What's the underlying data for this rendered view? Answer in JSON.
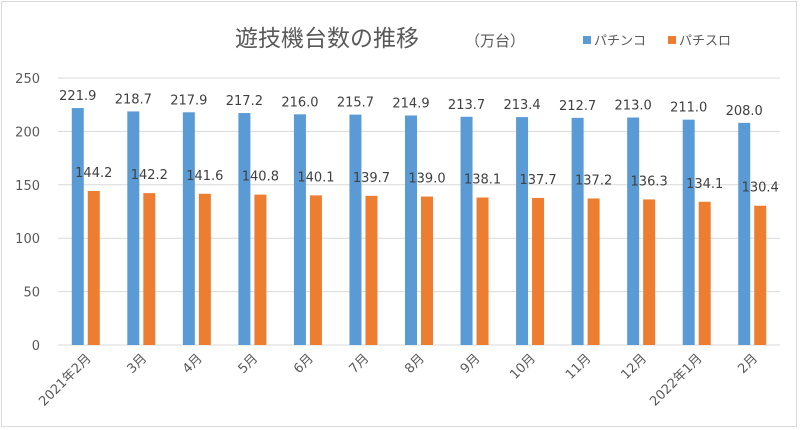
{
  "chart_data": {
    "type": "bar",
    "title": "遊技機台数の推移",
    "subtitle": "（万台）",
    "xlabel": "",
    "ylabel": "",
    "ylim": [
      0,
      250
    ],
    "yticks": [
      "0",
      "50",
      "100",
      "150",
      "200",
      "250"
    ],
    "grid": true,
    "legend_position": "top-right",
    "categories": [
      "2021年2月",
      "3月",
      "4月",
      "5月",
      "6月",
      "7月",
      "8月",
      "9月",
      "10月",
      "11月",
      "12月",
      "2022年1月",
      "2月"
    ],
    "series": [
      {
        "name": "パチンコ",
        "color": "#5b9bd5",
        "values": [
          221.9,
          218.7,
          217.9,
          217.2,
          216.0,
          215.7,
          214.9,
          213.7,
          213.4,
          212.7,
          213.0,
          211.0,
          208.0
        ]
      },
      {
        "name": "パチスロ",
        "color": "#ed7d31",
        "values": [
          144.2,
          142.2,
          141.6,
          140.8,
          140.1,
          139.7,
          139.0,
          138.1,
          137.7,
          137.2,
          136.3,
          134.1,
          130.4
        ]
      }
    ]
  }
}
